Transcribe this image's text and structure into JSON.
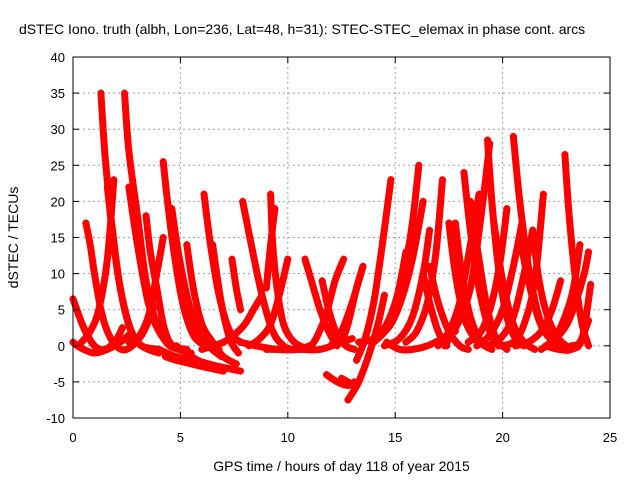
{
  "chart_data": {
    "type": "scatter",
    "title": "dSTEC Iono. truth (albh, Lon=236, Lat=48, h=31): STEC-STEC_elemax in phase cont. arcs",
    "xlabel": "GPS time / hours of day 118 of year 2015",
    "ylabel": "dSTEC  / TECUs",
    "xlim": [
      0,
      25
    ],
    "ylim": [
      -10,
      40
    ],
    "xticks": [
      "0",
      "5",
      "10",
      "15",
      "20",
      "25"
    ],
    "yticks": [
      "-10",
      "-5",
      "0",
      "5",
      "10",
      "15",
      "20",
      "25",
      "30",
      "35",
      "40"
    ],
    "grid": true,
    "marker": "+",
    "color": "#ff0000",
    "series": [
      {
        "x": [
          0.0,
          0.2,
          0.5,
          1.0,
          1.6,
          2.2,
          2.6
        ],
        "y": [
          0.5,
          0.0,
          -0.5,
          -1.0,
          -0.5,
          0.5,
          1.5
        ]
      },
      {
        "x": [
          0.0,
          0.5,
          1.0,
          1.5,
          2.0,
          2.3
        ],
        "y": [
          6.5,
          2.5,
          0.0,
          -0.5,
          0.8,
          2.5
        ]
      },
      {
        "x": [
          0.6,
          0.8,
          1.0,
          1.3,
          1.6,
          2.0,
          2.5,
          3.2,
          3.8
        ],
        "y": [
          17.0,
          14.0,
          10.0,
          5.0,
          2.0,
          0.0,
          -0.5,
          1.5,
          5.5
        ]
      },
      {
        "x": [
          0.4,
          0.8,
          1.2,
          1.6,
          1.9
        ],
        "y": [
          0.5,
          2.0,
          5.0,
          12.0,
          23.0
        ]
      },
      {
        "x": [
          1.3,
          1.5,
          1.8,
          2.2,
          2.7,
          3.2,
          4.0
        ],
        "y": [
          35.0,
          26.0,
          17.0,
          8.0,
          2.0,
          0.0,
          -0.5
        ]
      },
      {
        "x": [
          1.6,
          1.9,
          2.2,
          2.6,
          3.0,
          3.5,
          4.0
        ],
        "y": [
          22.0,
          14.0,
          8.0,
          3.0,
          0.5,
          -0.5,
          -1.0
        ]
      },
      {
        "x": [
          2.4,
          2.6,
          3.0,
          3.4,
          3.9,
          4.5,
          5.3
        ],
        "y": [
          35.0,
          27.0,
          18.0,
          9.0,
          3.0,
          0.0,
          -0.5
        ]
      },
      {
        "x": [
          2.6,
          3.0,
          3.5,
          4.0,
          4.6,
          5.2
        ],
        "y": [
          22.0,
          14.0,
          6.0,
          2.0,
          0.0,
          -0.5
        ]
      },
      {
        "x": [
          3.4,
          3.6,
          3.9,
          4.2,
          4.5,
          4.9,
          5.5
        ],
        "y": [
          18.0,
          13.0,
          8.0,
          3.0,
          0.5,
          -0.5,
          -1.0
        ]
      },
      {
        "x": [
          2.6,
          3.0,
          3.5,
          3.9,
          4.2
        ],
        "y": [
          0.5,
          1.0,
          4.0,
          10.0,
          15.0
        ]
      },
      {
        "x": [
          4.2,
          4.4,
          4.7,
          5.1,
          5.6,
          6.2,
          6.8
        ],
        "y": [
          25.5,
          20.0,
          13.0,
          6.0,
          1.5,
          0.0,
          -0.5
        ]
      },
      {
        "x": [
          4.6,
          4.9,
          5.3,
          5.8,
          6.3,
          6.9
        ],
        "y": [
          19.0,
          13.0,
          7.0,
          2.0,
          0.0,
          -1.5
        ]
      },
      {
        "x": [
          5.3,
          5.6,
          6.0,
          6.5,
          7.0,
          7.6
        ],
        "y": [
          14.0,
          8.0,
          3.0,
          0.5,
          -1.5,
          -2.5
        ]
      },
      {
        "x": [
          4.8,
          5.3,
          5.8,
          6.3,
          7.0,
          7.8
        ],
        "y": [
          0.0,
          -1.0,
          -2.0,
          -2.5,
          -3.0,
          -3.5
        ]
      },
      {
        "x": [
          4.3,
          4.8,
          5.5,
          6.2,
          7.0
        ],
        "y": [
          -1.5,
          -2.0,
          -2.5,
          -3.0,
          -3.5
        ]
      },
      {
        "x": [
          4.0,
          4.8,
          5.5,
          6.2
        ],
        "y": [
          -0.5,
          -1.5,
          -2.0,
          -2.5
        ]
      },
      {
        "x": [
          6.1,
          6.4,
          6.8,
          7.3,
          7.8
        ],
        "y": [
          21.0,
          14.0,
          7.0,
          2.0,
          0.5
        ]
      },
      {
        "x": [
          6.5,
          6.9,
          7.3,
          7.7
        ],
        "y": [
          14.0,
          6.0,
          1.0,
          -1.0
        ]
      },
      {
        "x": [
          7.4,
          7.6,
          7.8
        ],
        "y": [
          12.0,
          8.0,
          5.0
        ]
      },
      {
        "x": [
          6.0,
          6.5,
          7.0,
          7.5,
          8.0,
          8.4,
          8.8
        ],
        "y": [
          -0.5,
          0.0,
          0.5,
          1.5,
          3.0,
          5.0,
          7.0
        ]
      },
      {
        "x": [
          7.9,
          8.3,
          8.8,
          9.3,
          9.8,
          10.2
        ],
        "y": [
          20.0,
          14.0,
          7.0,
          2.0,
          0.0,
          -0.5
        ]
      },
      {
        "x": [
          9.2,
          9.3,
          9.5,
          9.8,
          10.3,
          11.0
        ],
        "y": [
          21.0,
          14.0,
          8.0,
          3.0,
          0.5,
          -0.5
        ]
      },
      {
        "x": [
          9.0,
          9.2,
          9.4
        ],
        "y": [
          8.0,
          14.0,
          19.0
        ]
      },
      {
        "x": [
          8.2,
          8.7,
          9.2,
          9.6,
          10.0
        ],
        "y": [
          0.0,
          1.0,
          3.0,
          7.0,
          12.0
        ]
      },
      {
        "x": [
          7.8,
          8.5,
          9.5,
          10.5,
          11.0
        ],
        "y": [
          0.5,
          0.0,
          -0.5,
          -0.5,
          0.0
        ]
      },
      {
        "x": [
          9.0,
          9.7,
          10.5,
          11.5,
          12.5,
          13.0
        ],
        "y": [
          -0.5,
          -0.5,
          -0.5,
          -0.5,
          0.5,
          1.0
        ]
      },
      {
        "x": [
          10.8,
          11.1,
          11.5,
          11.9,
          12.3
        ],
        "y": [
          12.0,
          9.0,
          5.0,
          2.0,
          0.0
        ]
      },
      {
        "x": [
          11.0,
          11.4,
          11.8,
          12.2,
          12.6
        ],
        "y": [
          -0.5,
          1.5,
          4.5,
          9.0,
          12.0
        ]
      },
      {
        "x": [
          11.6,
          11.9,
          12.3,
          12.7,
          13.1
        ],
        "y": [
          9.0,
          5.0,
          1.5,
          0.0,
          -0.5
        ]
      },
      {
        "x": [
          12.0,
          12.5,
          13.0,
          13.5
        ],
        "y": [
          0.0,
          2.0,
          6.0,
          11.0
        ]
      },
      {
        "x": [
          12.5,
          12.8,
          13.2,
          13.5
        ],
        "y": [
          0.5,
          3.0,
          8.0,
          11.0
        ]
      },
      {
        "x": [
          12.5,
          12.8,
          13.1
        ],
        "y": [
          -4.5,
          -5.0,
          -5.5
        ]
      },
      {
        "x": [
          11.8,
          12.3,
          12.8,
          13.1
        ],
        "y": [
          -4.0,
          -5.0,
          -5.5,
          -5.0
        ]
      },
      {
        "x": [
          12.8,
          13.3,
          13.8,
          14.2,
          14.5
        ],
        "y": [
          -7.5,
          -5.0,
          -1.0,
          3.0,
          7.0
        ]
      },
      {
        "x": [
          13.2,
          13.6,
          14.0,
          14.4,
          14.8
        ],
        "y": [
          -2.0,
          1.0,
          6.0,
          14.0,
          23.0
        ]
      },
      {
        "x": [
          14.0,
          14.5,
          15.0,
          15.4,
          15.8,
          16.1
        ],
        "y": [
          0.5,
          2.0,
          5.0,
          10.0,
          17.0,
          25.0
        ]
      },
      {
        "x": [
          13.3,
          14.0,
          14.6,
          15.1,
          15.5
        ],
        "y": [
          0.5,
          1.0,
          3.0,
          7.0,
          13.0
        ]
      },
      {
        "x": [
          14.2,
          14.8,
          15.3,
          15.8,
          16.3
        ],
        "y": [
          1.0,
          3.0,
          6.5,
          12.0,
          20.0
        ]
      },
      {
        "x": [
          14.5,
          15.2,
          15.8,
          16.3,
          16.6
        ],
        "y": [
          0.0,
          1.0,
          4.0,
          10.0,
          16.0
        ]
      },
      {
        "x": [
          15.5,
          16.0,
          16.5,
          16.9,
          17.2
        ],
        "y": [
          0.5,
          2.0,
          6.0,
          13.0,
          23.0
        ]
      },
      {
        "x": [
          14.6,
          15.2,
          15.8,
          16.5,
          17.2,
          17.8
        ],
        "y": [
          0.5,
          -0.5,
          -0.5,
          0.0,
          1.0,
          2.0
        ]
      },
      {
        "x": [
          16.3,
          16.6,
          17.0,
          17.4
        ],
        "y": [
          10.0,
          6.0,
          2.0,
          0.0
        ]
      },
      {
        "x": [
          16.6,
          17.0,
          17.5,
          18.0,
          18.4
        ],
        "y": [
          11.0,
          6.0,
          2.0,
          0.0,
          -0.5
        ]
      },
      {
        "x": [
          17.5,
          17.8,
          18.2,
          18.7,
          19.2
        ],
        "y": [
          17.0,
          10.0,
          4.0,
          1.0,
          0.0
        ]
      },
      {
        "x": [
          17.8,
          18.1,
          18.5,
          19.0,
          19.5
        ],
        "y": [
          17.0,
          10.0,
          4.0,
          0.5,
          -0.5
        ]
      },
      {
        "x": [
          18.2,
          18.5,
          18.9,
          19.4,
          19.8
        ],
        "y": [
          24.0,
          16.0,
          8.0,
          2.0,
          0.0
        ]
      },
      {
        "x": [
          18.5,
          18.9,
          19.3,
          19.7,
          20.2
        ],
        "y": [
          20.0,
          12.0,
          5.0,
          1.0,
          -0.5
        ]
      },
      {
        "x": [
          17.0,
          17.5,
          18.0,
          18.5,
          18.9
        ],
        "y": [
          0.0,
          2.0,
          6.0,
          14.0,
          21.0
        ]
      },
      {
        "x": [
          17.3,
          17.9,
          18.5,
          19.0,
          19.4
        ],
        "y": [
          0.0,
          3.0,
          8.0,
          18.0,
          28.0
        ]
      },
      {
        "x": [
          18.4,
          19.0,
          19.5,
          19.9,
          20.2
        ],
        "y": [
          0.5,
          2.0,
          6.0,
          12.0,
          19.0
        ]
      },
      {
        "x": [
          19.3,
          19.5,
          19.8,
          20.2,
          20.6,
          21.0
        ],
        "y": [
          28.5,
          20.0,
          11.0,
          4.0,
          1.0,
          0.0
        ]
      },
      {
        "x": [
          19.6,
          20.0,
          20.5,
          21.0,
          21.5
        ],
        "y": [
          17.0,
          9.0,
          3.0,
          0.5,
          -0.5
        ]
      },
      {
        "x": [
          18.8,
          19.4,
          20.0,
          20.5,
          20.9
        ],
        "y": [
          0.0,
          1.5,
          5.0,
          11.0,
          17.0
        ]
      },
      {
        "x": [
          19.3,
          19.9,
          20.5,
          21.0,
          21.4
        ],
        "y": [
          0.0,
          1.0,
          4.0,
          10.0,
          16.0
        ]
      },
      {
        "x": [
          20.5,
          20.8,
          21.2,
          21.7,
          22.3,
          23.0
        ],
        "y": [
          29.0,
          20.0,
          11.0,
          4.0,
          1.0,
          -0.5
        ]
      },
      {
        "x": [
          20.8,
          21.2,
          21.7,
          22.2,
          22.7
        ],
        "y": [
          15.0,
          9.0,
          3.5,
          1.0,
          0.0
        ]
      },
      {
        "x": [
          21.4,
          21.7,
          22.1,
          22.6,
          23.2
        ],
        "y": [
          16.0,
          9.0,
          4.0,
          1.0,
          -0.5
        ]
      },
      {
        "x": [
          19.8,
          20.5,
          21.0,
          21.5,
          21.9
        ],
        "y": [
          0.0,
          0.5,
          3.0,
          9.0,
          21.0
        ]
      },
      {
        "x": [
          20.6,
          21.2,
          21.8,
          22.3,
          22.7
        ],
        "y": [
          0.0,
          0.5,
          2.0,
          5.0,
          9.0
        ]
      },
      {
        "x": [
          22.9,
          23.1,
          23.4,
          23.7,
          24.0
        ],
        "y": [
          26.5,
          18.0,
          9.0,
          3.0,
          0.0
        ]
      },
      {
        "x": [
          21.8,
          22.4,
          22.9,
          23.3,
          23.6
        ],
        "y": [
          -0.5,
          1.0,
          4.0,
          8.0,
          14.0
        ]
      },
      {
        "x": [
          22.5,
          23.0,
          23.4,
          23.8,
          24.0
        ],
        "y": [
          1.0,
          3.0,
          6.0,
          10.0,
          13.0
        ]
      },
      {
        "x": [
          22.0,
          22.6,
          23.2,
          23.7,
          24.1
        ],
        "y": [
          0.0,
          -0.5,
          -0.5,
          1.0,
          8.5
        ]
      },
      {
        "x": [
          23.2,
          23.6,
          24.0
        ],
        "y": [
          0.0,
          0.5,
          3.5
        ]
      }
    ]
  }
}
